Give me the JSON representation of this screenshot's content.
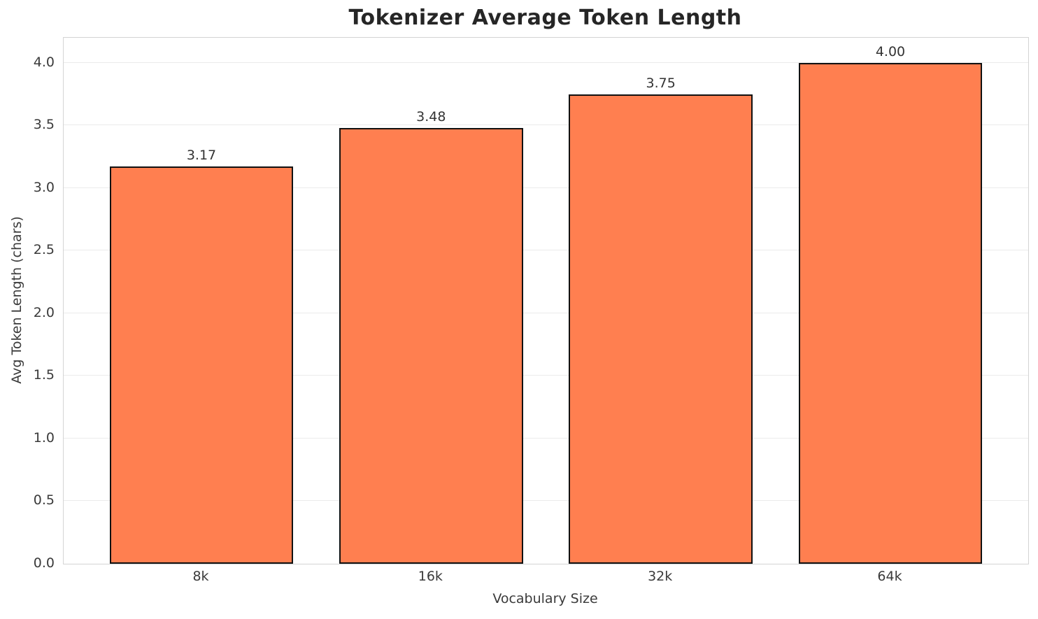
{
  "chart_data": {
    "type": "bar",
    "title": "Tokenizer Average Token Length",
    "xlabel": "Vocabulary Size",
    "ylabel": "Avg Token Length (chars)",
    "categories": [
      "8k",
      "16k",
      "32k",
      "64k"
    ],
    "values": [
      3.17,
      3.48,
      3.75,
      4.0
    ],
    "value_labels": [
      "3.17",
      "3.48",
      "3.75",
      "4.00"
    ],
    "yticks": [
      0.0,
      0.5,
      1.0,
      1.5,
      2.0,
      2.5,
      3.0,
      3.5,
      4.0
    ],
    "ytick_labels": [
      "0.0",
      "0.5",
      "1.0",
      "1.5",
      "2.0",
      "2.5",
      "3.0",
      "3.5",
      "4.0"
    ],
    "ylim": [
      0,
      4.2
    ],
    "bar_width_fraction": 0.8,
    "grid": true,
    "legend_position": "none",
    "bar_color": "#FF7F50",
    "bar_edge_color": "#111111"
  }
}
